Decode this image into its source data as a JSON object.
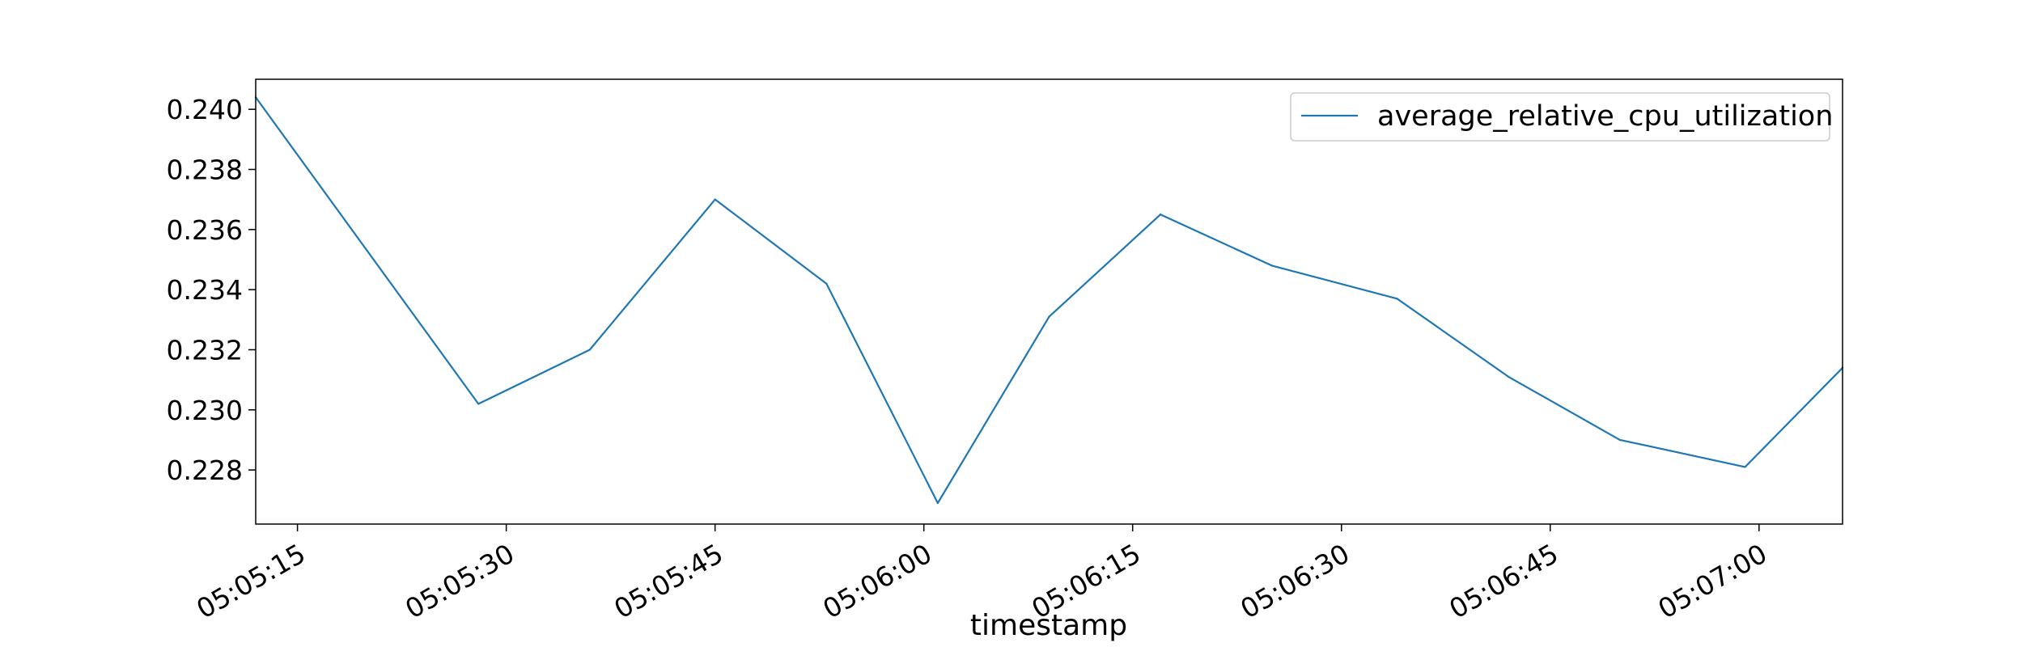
{
  "chart_data": {
    "type": "line",
    "xlabel": "timestamp",
    "ylabel": "",
    "x_tick_labels": [
      "05:05:15",
      "05:05:30",
      "05:05:45",
      "05:06:00",
      "05:06:15",
      "05:06:30",
      "05:06:45",
      "05:07:00"
    ],
    "y_tick_labels": [
      "0.228",
      "0.230",
      "0.232",
      "0.234",
      "0.236",
      "0.238",
      "0.240"
    ],
    "xlim": [
      "05:05:12",
      "05:07:06"
    ],
    "ylim": [
      0.2262,
      0.241
    ],
    "grid": false,
    "legend_position": "top-right",
    "series": [
      {
        "name": "average_relative_cpu_utilization",
        "color": "#1f77b4",
        "x": [
          "05:05:12",
          "05:05:28",
          "05:05:36",
          "05:05:45",
          "05:05:53",
          "05:06:01",
          "05:06:09",
          "05:06:17",
          "05:06:25",
          "05:06:34",
          "05:06:42",
          "05:06:50",
          "05:06:59",
          "05:07:06"
        ],
        "y": [
          0.2404,
          0.2302,
          0.232,
          0.237,
          0.2342,
          0.2269,
          0.2331,
          0.2365,
          0.2348,
          0.2337,
          0.2311,
          0.229,
          0.2281,
          0.2314
        ]
      }
    ]
  }
}
